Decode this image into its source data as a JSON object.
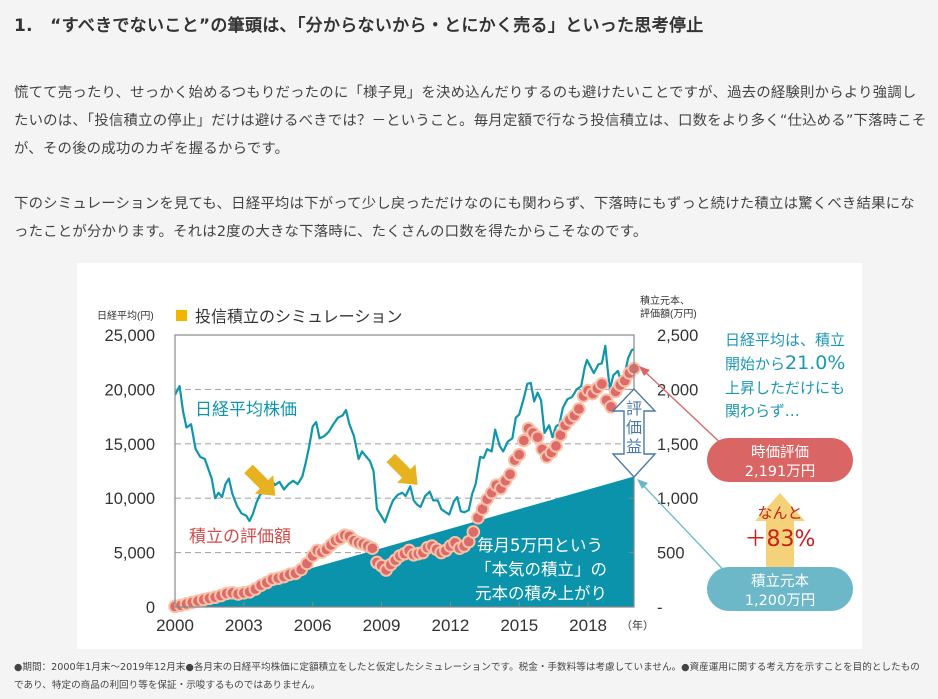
{
  "heading": "1.　“すべきでないこと”の筆頭は、「分からないから・とにかく売る」といった思考停止",
  "paragraphs": [
    "慌てて売ったり、せっかく始めるつもりだったのに「様子見」を決め込んだりするのも避けたいことですが、過去の経験則からより強調したいのは、「投信積立の停止」だけは避けるべきでは？－ということ。毎月定額で行なう投信積立は、口数をより多く“仕込める”下落時こそが、その後の成功のカギを握るからです。",
    "下のシミュレーションを見ても、日経平均は下がって少し戻っただけなのにも関わらず、下落時にもずっと続けた積立は驚くべき結果になったことが分かります。それは2度の大きな下落時に、たくさんの口数を得たからこそなのです。"
  ],
  "footnote": "●期間：2000年1月末～2019年12月末●各月末の日経平均株価に定額積立をしたと仮定したシミュレーションです。税金・手数料等は考慮していません。●資産運用に関する考え方を示すことを目的としたものであり、特定の商品の利回り等を保証・示唆するものではありません。",
  "colors": {
    "nikkei_line": "#0f96ac",
    "principal_area": "#0b93ab",
    "valuation_dot": "#de6a6a",
    "valuation_dot_border": "#f7c2a8",
    "down_arrow": "#e6b21f",
    "legend_square": "#f2b600",
    "callout_red": "#d96565",
    "callout_blue": "#6cb8c9",
    "up_arrow": "#f3d27a",
    "callout_text_blue": "#1c97b5",
    "label_red": "#d14b4b"
  },
  "chart_data": {
    "type": "line",
    "title": "投信積立のシミュレーション",
    "legend_marker": "■",
    "ylabel_left": "日経平均(円)",
    "ylabel_right_line1": "積立元本、",
    "ylabel_right_line2": "評価額(万円)",
    "xlabel_unit": "（年）",
    "x_range": [
      2000,
      2020
    ],
    "ylim_left": [
      0,
      25000
    ],
    "ylim_right": [
      0,
      2500
    ],
    "yticks_left": [
      "25,000",
      "20,000",
      "15,000",
      "10,000",
      "5,000",
      "0"
    ],
    "yticks_left_values": [
      25000,
      20000,
      15000,
      10000,
      5000,
      0
    ],
    "yticks_right": [
      "2,500",
      "2,000",
      "1,500",
      "1,000",
      "500",
      "-"
    ],
    "yticks_right_values": [
      2500,
      2000,
      1500,
      1000,
      500,
      0
    ],
    "xticks": [
      "2000",
      "2003",
      "2006",
      "2009",
      "2012",
      "2015",
      "2018"
    ],
    "xticks_values": [
      2000,
      2003,
      2006,
      2009,
      2012,
      2015,
      2018
    ],
    "grid": "horizontal dashed",
    "series": [
      {
        "name": "日経平均株価",
        "axis": "left",
        "type": "line",
        "points": [
          [
            2000.0,
            19500
          ],
          [
            2000.2,
            20300
          ],
          [
            2000.35,
            18000
          ],
          [
            2000.5,
            16500
          ],
          [
            2000.7,
            16800
          ],
          [
            2000.9,
            14500
          ],
          [
            2001.1,
            13800
          ],
          [
            2001.3,
            13600
          ],
          [
            2001.45,
            12700
          ],
          [
            2001.6,
            11800
          ],
          [
            2001.75,
            10000
          ],
          [
            2001.9,
            10500
          ],
          [
            2002.05,
            10100
          ],
          [
            2002.2,
            11300
          ],
          [
            2002.35,
            11800
          ],
          [
            2002.5,
            10400
          ],
          [
            2002.7,
            9300
          ],
          [
            2002.9,
            8600
          ],
          [
            2003.1,
            8400
          ],
          [
            2003.25,
            7900
          ],
          [
            2003.4,
            8600
          ],
          [
            2003.55,
            9600
          ],
          [
            2003.7,
            10300
          ],
          [
            2003.85,
            10600
          ],
          [
            2004.0,
            11000
          ],
          [
            2004.2,
            11700
          ],
          [
            2004.35,
            11200
          ],
          [
            2004.55,
            11500
          ],
          [
            2004.75,
            10800
          ],
          [
            2004.95,
            11300
          ],
          [
            2005.15,
            11600
          ],
          [
            2005.35,
            11300
          ],
          [
            2005.55,
            12000
          ],
          [
            2005.7,
            13300
          ],
          [
            2005.85,
            14800
          ],
          [
            2006.0,
            16600
          ],
          [
            2006.15,
            17000
          ],
          [
            2006.3,
            15500
          ],
          [
            2006.5,
            15700
          ],
          [
            2006.7,
            16100
          ],
          [
            2006.9,
            16800
          ],
          [
            2007.1,
            17400
          ],
          [
            2007.3,
            17600
          ],
          [
            2007.45,
            18100
          ],
          [
            2007.6,
            16800
          ],
          [
            2007.8,
            15700
          ],
          [
            2008.0,
            13600
          ],
          [
            2008.15,
            14300
          ],
          [
            2008.3,
            13900
          ],
          [
            2008.5,
            13400
          ],
          [
            2008.65,
            12500
          ],
          [
            2008.8,
            9000
          ],
          [
            2008.95,
            8500
          ],
          [
            2009.15,
            7800
          ],
          [
            2009.35,
            9000
          ],
          [
            2009.5,
            9800
          ],
          [
            2009.7,
            10300
          ],
          [
            2009.9,
            10500
          ],
          [
            2010.05,
            10200
          ],
          [
            2010.25,
            11100
          ],
          [
            2010.4,
            9800
          ],
          [
            2010.55,
            9400
          ],
          [
            2010.7,
            9200
          ],
          [
            2010.9,
            10200
          ],
          [
            2011.1,
            10600
          ],
          [
            2011.25,
            9800
          ],
          [
            2011.45,
            9800
          ],
          [
            2011.6,
            9000
          ],
          [
            2011.8,
            8700
          ],
          [
            2011.95,
            8500
          ],
          [
            2012.15,
            9700
          ],
          [
            2012.3,
            10100
          ],
          [
            2012.45,
            8800
          ],
          [
            2012.6,
            8700
          ],
          [
            2012.8,
            8900
          ],
          [
            2012.95,
            10400
          ],
          [
            2013.1,
            11300
          ],
          [
            2013.3,
            13800
          ],
          [
            2013.45,
            13700
          ],
          [
            2013.6,
            14500
          ],
          [
            2013.8,
            14300
          ],
          [
            2013.95,
            16300
          ],
          [
            2014.15,
            14800
          ],
          [
            2014.3,
            14300
          ],
          [
            2014.5,
            15200
          ],
          [
            2014.7,
            15500
          ],
          [
            2014.85,
            17400
          ],
          [
            2015.0,
            17700
          ],
          [
            2015.2,
            19200
          ],
          [
            2015.35,
            20500
          ],
          [
            2015.5,
            20600
          ],
          [
            2015.65,
            18900
          ],
          [
            2015.8,
            19700
          ],
          [
            2015.95,
            19000
          ],
          [
            2016.1,
            16000
          ],
          [
            2016.3,
            16700
          ],
          [
            2016.45,
            15600
          ],
          [
            2016.6,
            16600
          ],
          [
            2016.75,
            16800
          ],
          [
            2016.9,
            18300
          ],
          [
            2017.1,
            19100
          ],
          [
            2017.3,
            19300
          ],
          [
            2017.5,
            20000
          ],
          [
            2017.7,
            20300
          ],
          [
            2017.85,
            22000
          ],
          [
            2017.95,
            22700
          ],
          [
            2018.1,
            22100
          ],
          [
            2018.25,
            21500
          ],
          [
            2018.45,
            22300
          ],
          [
            2018.6,
            22400
          ],
          [
            2018.75,
            24000
          ],
          [
            2018.85,
            21900
          ],
          [
            2018.95,
            20000
          ],
          [
            2019.1,
            21300
          ],
          [
            2019.3,
            21700
          ],
          [
            2019.45,
            20600
          ],
          [
            2019.6,
            21500
          ],
          [
            2019.75,
            22900
          ],
          [
            2019.9,
            23600
          ],
          [
            2020.0,
            23700
          ]
        ]
      },
      {
        "name": "積立の評価額",
        "axis": "right",
        "type": "scatter",
        "points": [
          [
            2000.0,
            5
          ],
          [
            2000.25,
            15
          ],
          [
            2000.5,
            28
          ],
          [
            2000.75,
            42
          ],
          [
            2001.0,
            55
          ],
          [
            2001.25,
            68
          ],
          [
            2001.5,
            80
          ],
          [
            2001.75,
            90
          ],
          [
            2002.0,
            105
          ],
          [
            2002.25,
            125
          ],
          [
            2002.5,
            130
          ],
          [
            2002.75,
            120
          ],
          [
            2003.0,
            130
          ],
          [
            2003.25,
            140
          ],
          [
            2003.5,
            165
          ],
          [
            2003.75,
            200
          ],
          [
            2004.0,
            225
          ],
          [
            2004.25,
            255
          ],
          [
            2004.5,
            265
          ],
          [
            2004.75,
            280
          ],
          [
            2005.0,
            300
          ],
          [
            2005.25,
            310
          ],
          [
            2005.5,
            345
          ],
          [
            2005.75,
            400
          ],
          [
            2006.0,
            470
          ],
          [
            2006.2,
            520
          ],
          [
            2006.4,
            505
          ],
          [
            2006.6,
            530
          ],
          [
            2006.8,
            570
          ],
          [
            2007.0,
            610
          ],
          [
            2007.2,
            630
          ],
          [
            2007.4,
            660
          ],
          [
            2007.6,
            650
          ],
          [
            2007.8,
            610
          ],
          [
            2008.0,
            590
          ],
          [
            2008.2,
            580
          ],
          [
            2008.4,
            560
          ],
          [
            2008.6,
            540
          ],
          [
            2008.8,
            410
          ],
          [
            2009.0,
            380
          ],
          [
            2009.2,
            340
          ],
          [
            2009.4,
            390
          ],
          [
            2009.6,
            430
          ],
          [
            2009.8,
            470
          ],
          [
            2010.0,
            490
          ],
          [
            2010.2,
            520
          ],
          [
            2010.4,
            480
          ],
          [
            2010.6,
            490
          ],
          [
            2010.8,
            500
          ],
          [
            2011.0,
            545
          ],
          [
            2011.2,
            560
          ],
          [
            2011.4,
            530
          ],
          [
            2011.6,
            500
          ],
          [
            2011.8,
            520
          ],
          [
            2012.0,
            560
          ],
          [
            2012.2,
            590
          ],
          [
            2012.4,
            540
          ],
          [
            2012.6,
            560
          ],
          [
            2012.8,
            600
          ],
          [
            2013.0,
            690
          ],
          [
            2013.2,
            820
          ],
          [
            2013.4,
            900
          ],
          [
            2013.6,
            990
          ],
          [
            2013.8,
            1050
          ],
          [
            2014.0,
            1120
          ],
          [
            2014.2,
            1090
          ],
          [
            2014.4,
            1160
          ],
          [
            2014.6,
            1220
          ],
          [
            2014.8,
            1350
          ],
          [
            2015.0,
            1400
          ],
          [
            2015.2,
            1530
          ],
          [
            2015.4,
            1640
          ],
          [
            2015.6,
            1600
          ],
          [
            2015.8,
            1560
          ],
          [
            2016.0,
            1450
          ],
          [
            2016.2,
            1380
          ],
          [
            2016.4,
            1420
          ],
          [
            2016.6,
            1480
          ],
          [
            2016.8,
            1580
          ],
          [
            2017.0,
            1670
          ],
          [
            2017.2,
            1720
          ],
          [
            2017.4,
            1760
          ],
          [
            2017.6,
            1820
          ],
          [
            2017.8,
            1940
          ],
          [
            2018.0,
            1990
          ],
          [
            2018.2,
            1960
          ],
          [
            2018.4,
            2010
          ],
          [
            2018.6,
            2050
          ],
          [
            2018.8,
            1900
          ],
          [
            2019.0,
            1840
          ],
          [
            2019.2,
            1980
          ],
          [
            2019.4,
            2040
          ],
          [
            2019.6,
            2080
          ],
          [
            2019.8,
            2150
          ],
          [
            2020.0,
            2191
          ]
        ]
      },
      {
        "name": "積立元本",
        "axis": "right",
        "type": "area",
        "points": [
          [
            2000.0,
            0
          ],
          [
            2020.0,
            1200
          ]
        ]
      }
    ],
    "annotations": {
      "nikkei_label": "日経平均株価",
      "valuation_label": "積立の評価額",
      "principal_label_lines": [
        "毎月5万円という",
        "「本気の積立」の",
        "元本の積み上がり"
      ],
      "gain_label_chars": [
        "評",
        "価",
        "益"
      ],
      "nikkei_note_lines": [
        "日経平均は、積立",
        "開始から",
        "21.0%",
        "上昇しただけにも",
        "関わらず…"
      ],
      "valuation_callout": [
        "時価評価",
        "2,191万円"
      ],
      "principal_callout": [
        "積立元本",
        "1,200万円"
      ],
      "gain_text_1": "なんと",
      "gain_text_2": "＋83%",
      "down_arrows_at": [
        [
          2003.2,
          12700
        ],
        [
          2009.4,
          13700
        ]
      ]
    }
  }
}
